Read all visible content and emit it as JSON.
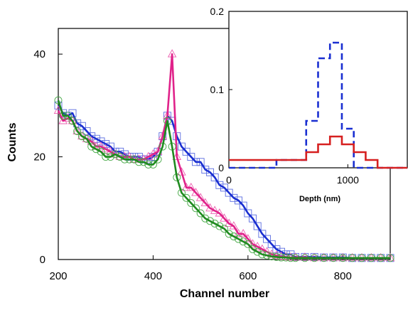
{
  "chart_data": [
    {
      "type": "line",
      "xlabel": "Channel number",
      "ylabel": "Counts",
      "xlim": [
        200,
        900
      ],
      "ylim": [
        0,
        45
      ],
      "x_ticks": [
        200,
        400,
        600,
        800
      ],
      "y_ticks": [
        0,
        20,
        40
      ],
      "x_tick_labels": [
        "200",
        "400",
        "600",
        "800"
      ],
      "y_tick_labels": [
        "0",
        "20",
        "40"
      ],
      "grid": false,
      "series": [
        {
          "color": "#1a2fd1",
          "marker": "square",
          "x": [
            200,
            210,
            220,
            230,
            240,
            250,
            260,
            270,
            280,
            290,
            300,
            310,
            320,
            330,
            340,
            350,
            360,
            370,
            380,
            390,
            400,
            410,
            420,
            430,
            440,
            450,
            460,
            470,
            480,
            490,
            500,
            510,
            520,
            530,
            540,
            550,
            560,
            570,
            580,
            590,
            600,
            610,
            620,
            630,
            640,
            650,
            660,
            670,
            680,
            690,
            700,
            720,
            740,
            760,
            780,
            800,
            820,
            840,
            860,
            880,
            900
          ],
          "y": [
            30,
            28.5,
            28,
            28.5,
            26.5,
            26,
            25,
            24,
            23.5,
            23,
            22.5,
            22,
            21,
            21,
            20.5,
            20,
            20,
            20,
            19.5,
            19.5,
            20,
            21,
            24,
            28,
            27,
            24,
            22,
            21,
            20,
            19,
            19,
            17.5,
            17,
            16,
            14.5,
            14,
            13,
            12,
            11.5,
            10.5,
            9,
            8,
            6.5,
            5,
            4,
            3,
            2,
            1.5,
            1,
            1,
            0.5,
            0.5,
            0.5,
            0.4,
            0.4,
            0.4,
            0.3,
            0.3,
            0.3,
            0.3,
            0.3
          ]
        },
        {
          "color": "#e0228a",
          "marker": "triangle",
          "x": [
            200,
            210,
            220,
            230,
            240,
            250,
            260,
            270,
            280,
            290,
            300,
            310,
            320,
            330,
            340,
            350,
            360,
            370,
            380,
            390,
            400,
            410,
            420,
            430,
            440,
            450,
            460,
            470,
            480,
            490,
            500,
            510,
            520,
            530,
            540,
            550,
            560,
            570,
            580,
            590,
            600,
            610,
            620,
            630,
            640,
            650,
            660,
            670,
            680,
            690,
            700,
            720,
            740,
            760,
            780,
            800,
            820,
            840,
            860,
            880,
            900
          ],
          "y": [
            29,
            27,
            27.5,
            27,
            25,
            24,
            23.5,
            23,
            22,
            22,
            21.5,
            21,
            20.5,
            20,
            20,
            20,
            19.5,
            19.5,
            19.5,
            20,
            20.5,
            21,
            24,
            28,
            40,
            20,
            17,
            14,
            14,
            13,
            12,
            11,
            10,
            9.5,
            9,
            8,
            7,
            6.5,
            5,
            5,
            4,
            3,
            2.5,
            2,
            1.5,
            1,
            0.8,
            0.6,
            0.5,
            0.4,
            0.4,
            0.4,
            0.3,
            0.3,
            0.3,
            0.3,
            0.3,
            0.3,
            0.3,
            0.3,
            0.3
          ]
        },
        {
          "color": "#1f8a1f",
          "marker": "circle",
          "x": [
            200,
            210,
            220,
            230,
            240,
            250,
            260,
            270,
            280,
            290,
            300,
            310,
            320,
            330,
            340,
            350,
            360,
            370,
            380,
            390,
            400,
            410,
            420,
            430,
            440,
            450,
            460,
            470,
            480,
            490,
            500,
            510,
            520,
            530,
            540,
            550,
            560,
            570,
            580,
            590,
            600,
            610,
            620,
            630,
            640,
            650,
            660,
            670,
            680,
            690,
            700,
            720,
            740,
            760,
            780,
            800,
            820,
            840,
            860,
            880,
            900
          ],
          "y": [
            31,
            28,
            28,
            27,
            25,
            24,
            23.5,
            22,
            21.5,
            21,
            20,
            20,
            20.5,
            20,
            19.5,
            19.5,
            19.5,
            19,
            19,
            18.5,
            18.5,
            19.5,
            22,
            27,
            22,
            16,
            13,
            12,
            11,
            10,
            9,
            8,
            7.5,
            7,
            6.5,
            6,
            5,
            4.5,
            4,
            3.5,
            3,
            2,
            1.5,
            1,
            0.8,
            0.6,
            0.5,
            0.4,
            0.4,
            0.3,
            0.3,
            0.3,
            0.3,
            0.3,
            0.3,
            0.3,
            0.3,
            0.3,
            0.3,
            0.3,
            0.3
          ]
        }
      ]
    },
    {
      "type": "line",
      "xlabel": "Depth (nm)",
      "ylabel": "",
      "xlim": [
        0,
        1500
      ],
      "ylim": [
        0,
        0.2
      ],
      "x_ticks": [
        0,
        1000
      ],
      "y_ticks": [
        0,
        0.1,
        0.2
      ],
      "x_tick_labels": [
        "0",
        "1000"
      ],
      "y_tick_labels": [
        "0",
        "0.1",
        "0.2"
      ],
      "grid": false,
      "series": [
        {
          "color": "#1a2fd1",
          "style": "dashed-step",
          "x": [
            0,
            250,
            400,
            550,
            650,
            750,
            850,
            950,
            1050,
            1150,
            1250,
            1500
          ],
          "y": [
            0,
            0,
            0.01,
            0.01,
            0.06,
            0.14,
            0.16,
            0.05,
            0,
            0,
            0,
            0
          ]
        },
        {
          "color": "#d62020",
          "style": "solid-step",
          "x": [
            0,
            250,
            400,
            550,
            650,
            750,
            850,
            950,
            1050,
            1150,
            1250,
            1500
          ],
          "y": [
            0.01,
            0.01,
            0.01,
            0.01,
            0.02,
            0.03,
            0.04,
            0.03,
            0.02,
            0.01,
            0,
            0
          ]
        }
      ]
    }
  ]
}
